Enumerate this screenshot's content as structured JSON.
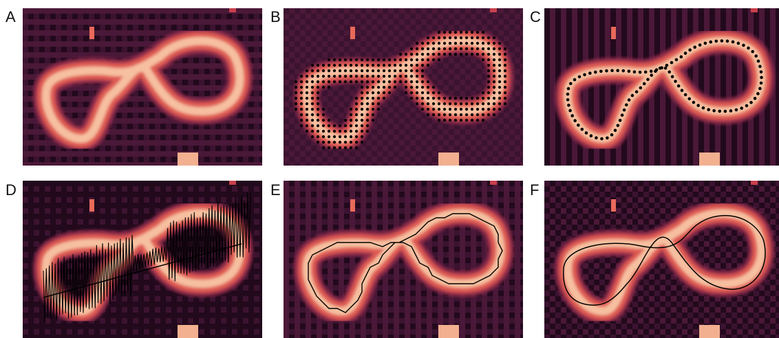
{
  "figure": {
    "panels": [
      {
        "label": "A",
        "overlay": "none"
      },
      {
        "label": "B",
        "overlay": "dense-dot-grid"
      },
      {
        "label": "C",
        "overlay": "skeleton-dots"
      },
      {
        "label": "D",
        "overlay": "zigzag-path"
      },
      {
        "label": "E",
        "overlay": "pixel-contour"
      },
      {
        "label": "F",
        "overlay": "smooth-curve"
      }
    ],
    "colors": {
      "background": "#2a0e22",
      "ring_outer": "#8e2a4a",
      "ring_mid": "#df5a52",
      "ring_core": "#f6c0a0",
      "overlay": "#000000"
    }
  }
}
